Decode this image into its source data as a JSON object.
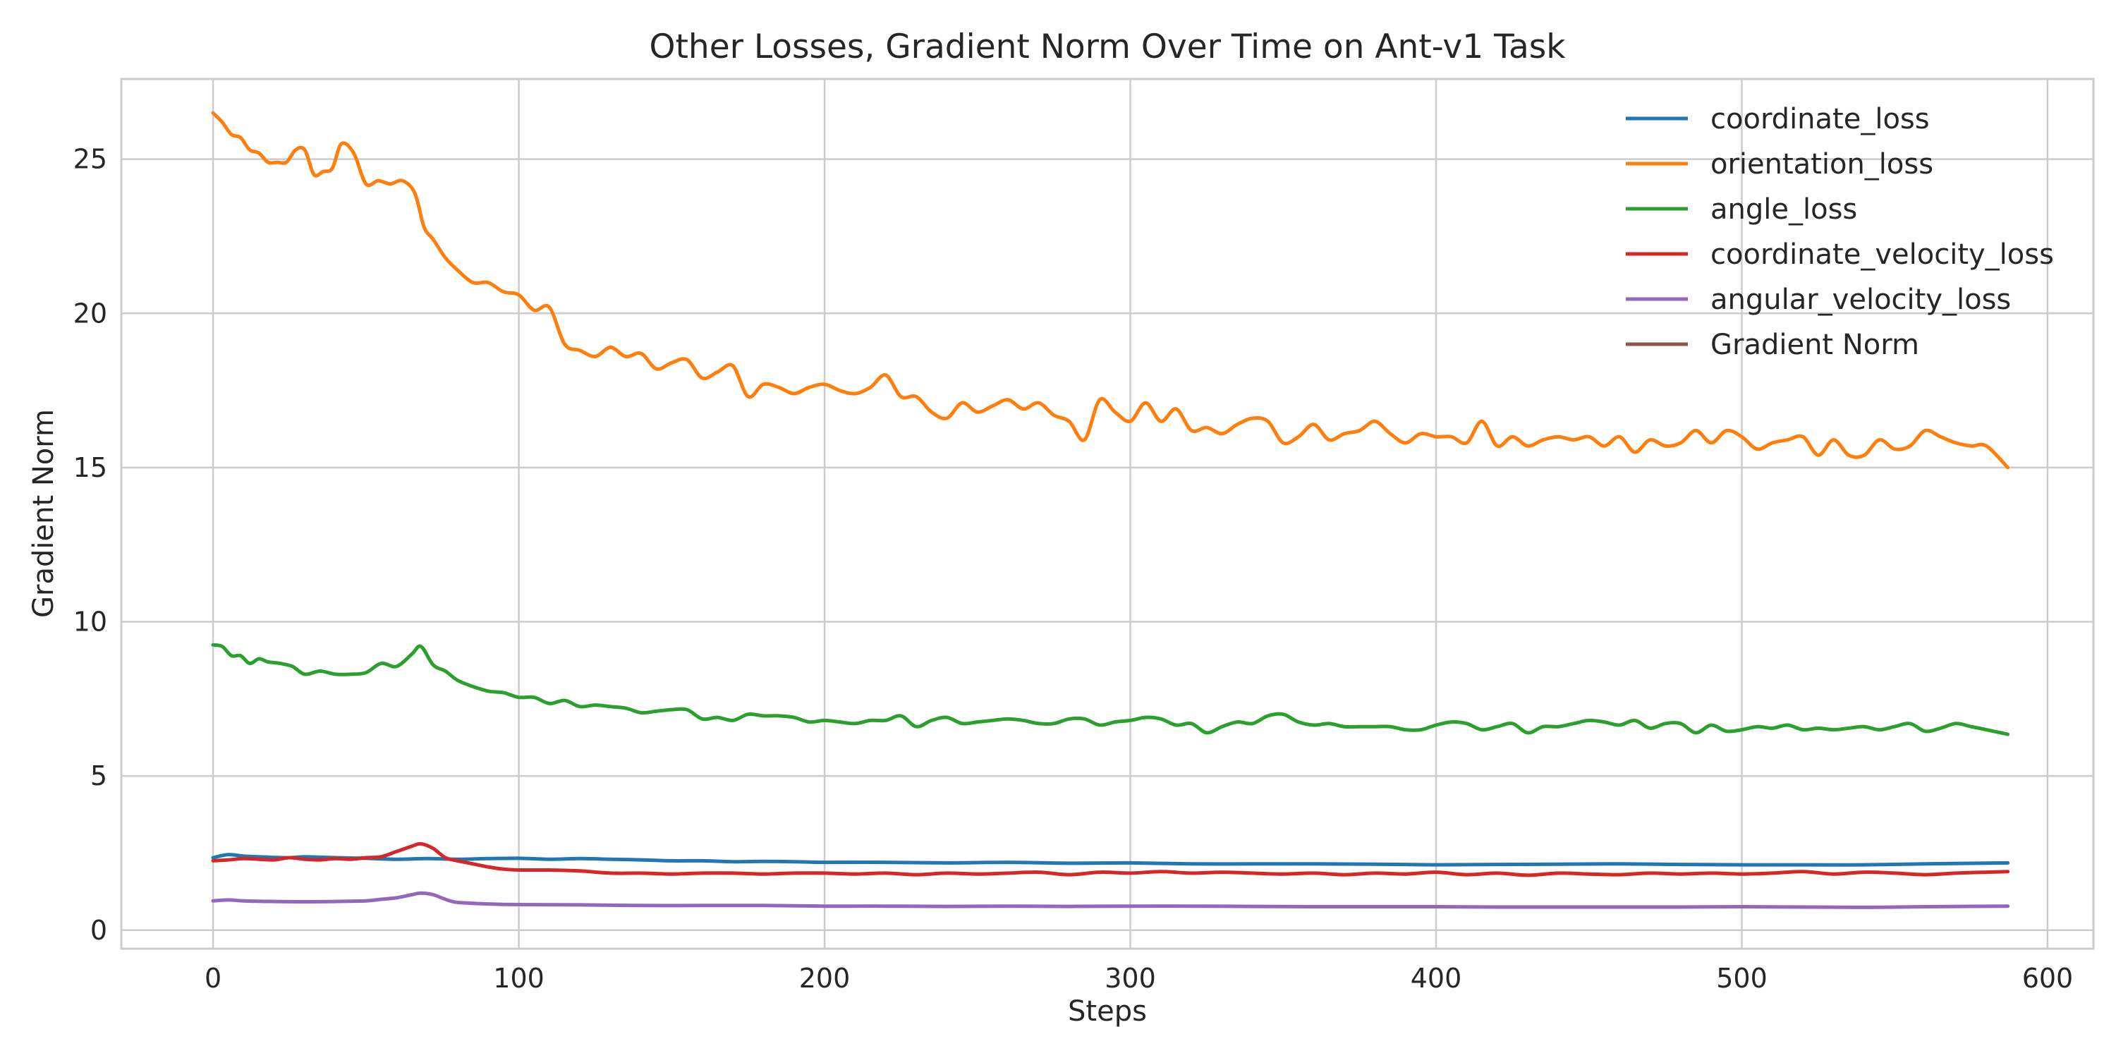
{
  "chart_data": {
    "type": "line",
    "title": "Other Losses, Gradient Norm Over Time on Ant-v1 Task",
    "xlabel": "Steps",
    "ylabel": "Gradient Norm",
    "xlim": [
      -30,
      615
    ],
    "ylim": [
      -0.6,
      27.6
    ],
    "xticks": [
      0,
      100,
      200,
      300,
      400,
      500,
      600
    ],
    "yticks": [
      0,
      5,
      10,
      15,
      20,
      25
    ],
    "grid": true,
    "legend_position": "top-right",
    "series": [
      {
        "name": "coordinate_loss",
        "color": "#1f77b4",
        "x": [
          0,
          5,
          10,
          15,
          20,
          25,
          30,
          40,
          50,
          60,
          70,
          80,
          90,
          100,
          110,
          120,
          130,
          140,
          150,
          160,
          170,
          180,
          190,
          200,
          220,
          240,
          260,
          280,
          300,
          320,
          340,
          360,
          380,
          400,
          420,
          440,
          460,
          480,
          500,
          520,
          540,
          560,
          587
        ],
        "y": [
          2.35,
          2.45,
          2.4,
          2.38,
          2.36,
          2.35,
          2.38,
          2.35,
          2.33,
          2.3,
          2.32,
          2.3,
          2.32,
          2.33,
          2.3,
          2.32,
          2.3,
          2.28,
          2.25,
          2.25,
          2.22,
          2.23,
          2.22,
          2.2,
          2.2,
          2.18,
          2.2,
          2.17,
          2.18,
          2.15,
          2.15,
          2.15,
          2.14,
          2.12,
          2.13,
          2.14,
          2.15,
          2.13,
          2.12,
          2.12,
          2.12,
          2.15,
          2.18
        ]
      },
      {
        "name": "orientation_loss",
        "color": "#ff7f0e",
        "x": [
          0,
          3,
          6,
          9,
          12,
          15,
          18,
          21,
          24,
          27,
          30,
          33,
          36,
          39,
          42,
          46,
          50,
          54,
          58,
          62,
          66,
          69,
          72,
          76,
          80,
          85,
          90,
          95,
          100,
          105,
          110,
          115,
          120,
          125,
          130,
          135,
          140,
          145,
          150,
          155,
          160,
          165,
          170,
          175,
          180,
          185,
          190,
          195,
          200,
          205,
          210,
          215,
          220,
          225,
          230,
          235,
          240,
          245,
          250,
          255,
          260,
          265,
          270,
          275,
          280,
          285,
          290,
          295,
          300,
          305,
          310,
          315,
          320,
          325,
          330,
          335,
          340,
          345,
          350,
          355,
          360,
          365,
          370,
          375,
          380,
          385,
          390,
          395,
          400,
          405,
          410,
          415,
          420,
          425,
          430,
          435,
          440,
          445,
          450,
          455,
          460,
          465,
          470,
          475,
          480,
          485,
          490,
          495,
          500,
          505,
          510,
          515,
          520,
          525,
          530,
          535,
          540,
          545,
          550,
          555,
          560,
          565,
          570,
          575,
          580,
          587
        ],
        "y": [
          26.5,
          26.2,
          25.8,
          25.7,
          25.3,
          25.2,
          24.9,
          24.9,
          24.9,
          25.3,
          25.3,
          24.5,
          24.6,
          24.7,
          25.5,
          25.2,
          24.2,
          24.3,
          24.2,
          24.3,
          23.9,
          22.8,
          22.4,
          21.8,
          21.4,
          21.0,
          21.0,
          20.7,
          20.6,
          20.1,
          20.2,
          19.0,
          18.8,
          18.6,
          18.9,
          18.6,
          18.7,
          18.2,
          18.4,
          18.5,
          17.9,
          18.1,
          18.3,
          17.3,
          17.7,
          17.6,
          17.4,
          17.6,
          17.7,
          17.5,
          17.4,
          17.6,
          18.0,
          17.3,
          17.3,
          16.8,
          16.6,
          17.1,
          16.8,
          17.0,
          17.2,
          16.9,
          17.1,
          16.7,
          16.5,
          15.9,
          17.2,
          16.8,
          16.5,
          17.1,
          16.5,
          16.9,
          16.2,
          16.3,
          16.1,
          16.4,
          16.6,
          16.5,
          15.8,
          16.0,
          16.4,
          15.9,
          16.1,
          16.2,
          16.5,
          16.1,
          15.8,
          16.1,
          16.0,
          16.0,
          15.8,
          16.5,
          15.7,
          16.0,
          15.7,
          15.9,
          16.0,
          15.9,
          16.0,
          15.7,
          16.0,
          15.5,
          15.9,
          15.7,
          15.8,
          16.2,
          15.8,
          16.2,
          16.0,
          15.6,
          15.8,
          15.9,
          16.0,
          15.4,
          15.9,
          15.4,
          15.4,
          15.9,
          15.6,
          15.7,
          16.2,
          16.0,
          15.8,
          15.7,
          15.7,
          15.0
        ]
      },
      {
        "name": "angle_loss",
        "color": "#2ca02c",
        "x": [
          0,
          3,
          6,
          9,
          12,
          15,
          18,
          22,
          26,
          30,
          35,
          40,
          45,
          50,
          55,
          60,
          65,
          68,
          72,
          76,
          80,
          85,
          90,
          95,
          100,
          105,
          110,
          115,
          120,
          125,
          130,
          135,
          140,
          145,
          150,
          155,
          160,
          165,
          170,
          175,
          180,
          185,
          190,
          195,
          200,
          205,
          210,
          215,
          220,
          225,
          230,
          235,
          240,
          245,
          250,
          255,
          260,
          265,
          270,
          275,
          280,
          285,
          290,
          295,
          300,
          305,
          310,
          315,
          320,
          325,
          330,
          335,
          340,
          345,
          350,
          355,
          360,
          365,
          370,
          375,
          380,
          385,
          390,
          395,
          400,
          405,
          410,
          415,
          420,
          425,
          430,
          435,
          440,
          445,
          450,
          455,
          460,
          465,
          470,
          475,
          480,
          485,
          490,
          495,
          500,
          505,
          510,
          515,
          520,
          525,
          530,
          535,
          540,
          545,
          550,
          555,
          560,
          565,
          570,
          575,
          580,
          587
        ],
        "y": [
          9.25,
          9.2,
          8.9,
          8.9,
          8.65,
          8.8,
          8.7,
          8.65,
          8.55,
          8.3,
          8.4,
          8.3,
          8.3,
          8.35,
          8.65,
          8.55,
          8.95,
          9.2,
          8.6,
          8.4,
          8.1,
          7.9,
          7.75,
          7.7,
          7.55,
          7.55,
          7.35,
          7.45,
          7.25,
          7.3,
          7.25,
          7.2,
          7.05,
          7.1,
          7.15,
          7.15,
          6.85,
          6.9,
          6.8,
          7.0,
          6.95,
          6.95,
          6.9,
          6.75,
          6.8,
          6.75,
          6.7,
          6.8,
          6.8,
          6.95,
          6.6,
          6.8,
          6.9,
          6.7,
          6.75,
          6.8,
          6.85,
          6.8,
          6.7,
          6.7,
          6.85,
          6.85,
          6.65,
          6.75,
          6.8,
          6.9,
          6.85,
          6.65,
          6.7,
          6.4,
          6.6,
          6.75,
          6.7,
          6.95,
          7.0,
          6.75,
          6.65,
          6.7,
          6.6,
          6.6,
          6.6,
          6.6,
          6.5,
          6.5,
          6.65,
          6.75,
          6.7,
          6.5,
          6.6,
          6.7,
          6.4,
          6.6,
          6.6,
          6.7,
          6.8,
          6.75,
          6.65,
          6.8,
          6.55,
          6.7,
          6.7,
          6.4,
          6.65,
          6.45,
          6.5,
          6.6,
          6.55,
          6.65,
          6.5,
          6.55,
          6.5,
          6.55,
          6.6,
          6.5,
          6.6,
          6.7,
          6.45,
          6.55,
          6.7,
          6.6,
          6.5,
          6.35
        ]
      },
      {
        "name": "coordinate_velocity_loss",
        "color": "#d62728",
        "x": [
          0,
          5,
          10,
          15,
          20,
          25,
          30,
          35,
          40,
          45,
          50,
          55,
          60,
          65,
          68,
          72,
          76,
          80,
          85,
          90,
          95,
          100,
          110,
          120,
          130,
          140,
          150,
          160,
          170,
          180,
          190,
          200,
          210,
          220,
          230,
          240,
          250,
          260,
          270,
          280,
          290,
          300,
          310,
          320,
          330,
          340,
          350,
          360,
          370,
          380,
          390,
          400,
          410,
          420,
          430,
          440,
          450,
          460,
          470,
          480,
          490,
          500,
          510,
          520,
          530,
          540,
          550,
          560,
          570,
          580,
          587
        ],
        "y": [
          2.25,
          2.28,
          2.32,
          2.3,
          2.28,
          2.35,
          2.3,
          2.28,
          2.32,
          2.3,
          2.35,
          2.38,
          2.55,
          2.72,
          2.8,
          2.65,
          2.35,
          2.25,
          2.15,
          2.05,
          1.98,
          1.95,
          1.95,
          1.92,
          1.85,
          1.85,
          1.82,
          1.85,
          1.85,
          1.82,
          1.85,
          1.85,
          1.82,
          1.85,
          1.8,
          1.85,
          1.82,
          1.85,
          1.88,
          1.8,
          1.88,
          1.85,
          1.9,
          1.85,
          1.88,
          1.85,
          1.82,
          1.85,
          1.8,
          1.85,
          1.82,
          1.88,
          1.8,
          1.85,
          1.78,
          1.85,
          1.82,
          1.8,
          1.85,
          1.82,
          1.85,
          1.82,
          1.85,
          1.9,
          1.82,
          1.88,
          1.85,
          1.8,
          1.85,
          1.88,
          1.9
        ]
      },
      {
        "name": "angular_velocity_loss",
        "color": "#9467bd",
        "x": [
          0,
          5,
          10,
          20,
          30,
          40,
          50,
          55,
          60,
          65,
          68,
          72,
          76,
          80,
          90,
          100,
          120,
          140,
          160,
          180,
          200,
          220,
          240,
          260,
          280,
          300,
          320,
          340,
          360,
          380,
          400,
          420,
          440,
          460,
          480,
          500,
          520,
          540,
          560,
          587
        ],
        "y": [
          0.95,
          0.98,
          0.95,
          0.93,
          0.92,
          0.93,
          0.95,
          1.0,
          1.05,
          1.15,
          1.2,
          1.15,
          1.0,
          0.9,
          0.85,
          0.83,
          0.82,
          0.8,
          0.8,
          0.8,
          0.78,
          0.78,
          0.77,
          0.78,
          0.77,
          0.78,
          0.78,
          0.77,
          0.76,
          0.76,
          0.76,
          0.75,
          0.75,
          0.75,
          0.75,
          0.76,
          0.75,
          0.74,
          0.76,
          0.78
        ]
      },
      {
        "name": "Gradient Norm",
        "color": "#8c564b",
        "x": [],
        "y": []
      }
    ]
  }
}
